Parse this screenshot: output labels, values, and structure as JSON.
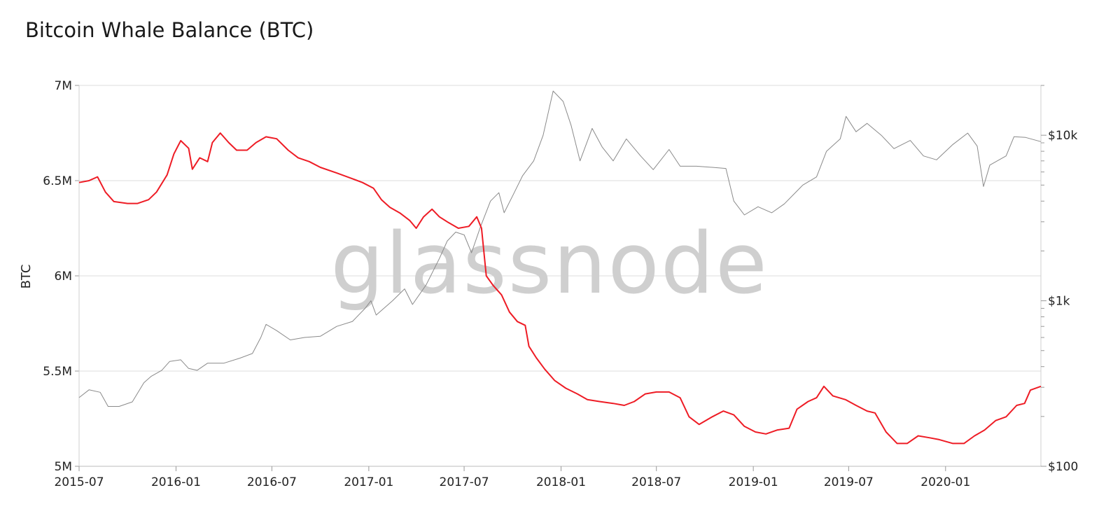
{
  "chart_data": {
    "type": "line",
    "title": "Bitcoin Whale Balance (BTC)",
    "ylabel": "BTC",
    "ylabel_right": "",
    "watermark": "glassnode",
    "ylim": [
      5000000,
      7000000
    ],
    "ylim_right": [
      100,
      20000
    ],
    "right_scale": "log",
    "yticks": [
      {
        "value": 7000000,
        "label": "7M"
      },
      {
        "value": 6500000,
        "label": "6.5M"
      },
      {
        "value": 6000000,
        "label": "6M"
      },
      {
        "value": 5500000,
        "label": "5.5M"
      },
      {
        "value": 5000000,
        "label": "5M"
      }
    ],
    "yticks_right": [
      {
        "value": 10000,
        "label": "$10k"
      },
      {
        "value": 1000,
        "label": "$1k"
      },
      {
        "value": 100,
        "label": "$100"
      }
    ],
    "xlim": [
      "2015-07-01",
      "2020-06-30"
    ],
    "xticks": [
      "2015-07",
      "2016-01",
      "2016-07",
      "2017-01",
      "2017-07",
      "2018-01",
      "2018-07",
      "2019-01",
      "2019-07",
      "2020-01"
    ],
    "grid": true,
    "series": [
      {
        "name": "",
        "axis": "left",
        "color": "#ee1c25",
        "points": [
          [
            "2015-07-01",
            6490000
          ],
          [
            "2015-07-20",
            6500000
          ],
          [
            "2015-08-05",
            6520000
          ],
          [
            "2015-08-20",
            6440000
          ],
          [
            "2015-09-05",
            6390000
          ],
          [
            "2015-10-01",
            6380000
          ],
          [
            "2015-10-20",
            6380000
          ],
          [
            "2015-11-10",
            6400000
          ],
          [
            "2015-11-25",
            6440000
          ],
          [
            "2015-12-15",
            6530000
          ],
          [
            "2015-12-28",
            6640000
          ],
          [
            "2016-01-10",
            6710000
          ],
          [
            "2016-01-25",
            6670000
          ],
          [
            "2016-02-01",
            6560000
          ],
          [
            "2016-02-15",
            6620000
          ],
          [
            "2016-03-01",
            6600000
          ],
          [
            "2016-03-10",
            6700000
          ],
          [
            "2016-03-25",
            6750000
          ],
          [
            "2016-04-10",
            6700000
          ],
          [
            "2016-04-25",
            6660000
          ],
          [
            "2016-05-15",
            6660000
          ],
          [
            "2016-06-01",
            6700000
          ],
          [
            "2016-06-20",
            6730000
          ],
          [
            "2016-07-10",
            6720000
          ],
          [
            "2016-08-01",
            6660000
          ],
          [
            "2016-08-20",
            6620000
          ],
          [
            "2016-09-10",
            6600000
          ],
          [
            "2016-10-01",
            6570000
          ],
          [
            "2016-11-01",
            6540000
          ],
          [
            "2016-12-01",
            6510000
          ],
          [
            "2016-12-20",
            6490000
          ],
          [
            "2017-01-10",
            6460000
          ],
          [
            "2017-01-25",
            6400000
          ],
          [
            "2017-02-10",
            6360000
          ],
          [
            "2017-03-01",
            6330000
          ],
          [
            "2017-03-20",
            6290000
          ],
          [
            "2017-04-01",
            6250000
          ],
          [
            "2017-04-15",
            6310000
          ],
          [
            "2017-05-01",
            6350000
          ],
          [
            "2017-05-15",
            6310000
          ],
          [
            "2017-06-01",
            6280000
          ],
          [
            "2017-06-20",
            6250000
          ],
          [
            "2017-07-10",
            6260000
          ],
          [
            "2017-07-25",
            6310000
          ],
          [
            "2017-08-03",
            6250000
          ],
          [
            "2017-08-12",
            6000000
          ],
          [
            "2017-08-25",
            5950000
          ],
          [
            "2017-09-10",
            5900000
          ],
          [
            "2017-09-25",
            5810000
          ],
          [
            "2017-10-10",
            5760000
          ],
          [
            "2017-10-25",
            5740000
          ],
          [
            "2017-11-01",
            5630000
          ],
          [
            "2017-11-15",
            5570000
          ],
          [
            "2017-12-01",
            5510000
          ],
          [
            "2017-12-20",
            5450000
          ],
          [
            "2018-01-10",
            5410000
          ],
          [
            "2018-02-01",
            5380000
          ],
          [
            "2018-02-20",
            5350000
          ],
          [
            "2018-03-15",
            5340000
          ],
          [
            "2018-04-10",
            5330000
          ],
          [
            "2018-05-01",
            5320000
          ],
          [
            "2018-05-20",
            5340000
          ],
          [
            "2018-06-10",
            5380000
          ],
          [
            "2018-07-01",
            5390000
          ],
          [
            "2018-07-25",
            5390000
          ],
          [
            "2018-08-15",
            5360000
          ],
          [
            "2018-09-01",
            5260000
          ],
          [
            "2018-09-20",
            5220000
          ],
          [
            "2018-10-15",
            5260000
          ],
          [
            "2018-11-05",
            5290000
          ],
          [
            "2018-11-25",
            5270000
          ],
          [
            "2018-12-15",
            5210000
          ],
          [
            "2019-01-05",
            5180000
          ],
          [
            "2019-01-25",
            5170000
          ],
          [
            "2019-02-15",
            5190000
          ],
          [
            "2019-03-10",
            5200000
          ],
          [
            "2019-03-25",
            5300000
          ],
          [
            "2019-04-15",
            5340000
          ],
          [
            "2019-05-01",
            5360000
          ],
          [
            "2019-05-15",
            5420000
          ],
          [
            "2019-06-01",
            5370000
          ],
          [
            "2019-06-25",
            5350000
          ],
          [
            "2019-07-15",
            5320000
          ],
          [
            "2019-08-05",
            5290000
          ],
          [
            "2019-08-20",
            5280000
          ],
          [
            "2019-09-10",
            5180000
          ],
          [
            "2019-10-01",
            5120000
          ],
          [
            "2019-10-20",
            5120000
          ],
          [
            "2019-11-10",
            5160000
          ],
          [
            "2019-12-01",
            5150000
          ],
          [
            "2019-12-20",
            5140000
          ],
          [
            "2020-01-15",
            5120000
          ],
          [
            "2020-02-05",
            5120000
          ],
          [
            "2020-02-25",
            5160000
          ],
          [
            "2020-03-15",
            5190000
          ],
          [
            "2020-04-05",
            5240000
          ],
          [
            "2020-04-25",
            5260000
          ],
          [
            "2020-05-15",
            5320000
          ],
          [
            "2020-05-30",
            5330000
          ],
          [
            "2020-06-10",
            5400000
          ],
          [
            "2020-06-30",
            5420000
          ]
        ]
      },
      {
        "name": "",
        "axis": "right",
        "color": "#8a8a8a",
        "points": [
          [
            "2015-07-01",
            260
          ],
          [
            "2015-07-20",
            290
          ],
          [
            "2015-08-10",
            280
          ],
          [
            "2015-08-25",
            230
          ],
          [
            "2015-09-15",
            230
          ],
          [
            "2015-10-10",
            245
          ],
          [
            "2015-11-01",
            320
          ],
          [
            "2015-11-15",
            350
          ],
          [
            "2015-12-05",
            380
          ],
          [
            "2015-12-20",
            430
          ],
          [
            "2016-01-10",
            440
          ],
          [
            "2016-01-25",
            390
          ],
          [
            "2016-02-10",
            380
          ],
          [
            "2016-03-01",
            420
          ],
          [
            "2016-04-01",
            420
          ],
          [
            "2016-05-01",
            450
          ],
          [
            "2016-05-25",
            480
          ],
          [
            "2016-06-10",
            600
          ],
          [
            "2016-06-20",
            720
          ],
          [
            "2016-07-10",
            660
          ],
          [
            "2016-08-05",
            580
          ],
          [
            "2016-09-01",
            600
          ],
          [
            "2016-10-01",
            610
          ],
          [
            "2016-11-01",
            700
          ],
          [
            "2016-12-01",
            750
          ],
          [
            "2016-12-25",
            900
          ],
          [
            "2017-01-05",
            1000
          ],
          [
            "2017-01-15",
            820
          ],
          [
            "2017-02-15",
            1000
          ],
          [
            "2017-03-10",
            1180
          ],
          [
            "2017-03-25",
            950
          ],
          [
            "2017-04-20",
            1250
          ],
          [
            "2017-05-15",
            1800
          ],
          [
            "2017-05-30",
            2300
          ],
          [
            "2017-06-15",
            2600
          ],
          [
            "2017-07-01",
            2500
          ],
          [
            "2017-07-15",
            1950
          ],
          [
            "2017-08-01",
            2800
          ],
          [
            "2017-08-20",
            4000
          ],
          [
            "2017-09-05",
            4500
          ],
          [
            "2017-09-15",
            3400
          ],
          [
            "2017-10-01",
            4300
          ],
          [
            "2017-10-20",
            5700
          ],
          [
            "2017-11-10",
            7000
          ],
          [
            "2017-11-28",
            10000
          ],
          [
            "2017-12-17",
            18500
          ],
          [
            "2018-01-05",
            16000
          ],
          [
            "2018-01-20",
            11500
          ],
          [
            "2018-02-06",
            7000
          ],
          [
            "2018-03-01",
            11000
          ],
          [
            "2018-03-20",
            8500
          ],
          [
            "2018-04-10",
            7000
          ],
          [
            "2018-05-05",
            9500
          ],
          [
            "2018-06-01",
            7500
          ],
          [
            "2018-06-25",
            6200
          ],
          [
            "2018-07-25",
            8200
          ],
          [
            "2018-08-15",
            6500
          ],
          [
            "2018-09-15",
            6500
          ],
          [
            "2018-10-15",
            6400
          ],
          [
            "2018-11-10",
            6300
          ],
          [
            "2018-11-25",
            4000
          ],
          [
            "2018-12-15",
            3300
          ],
          [
            "2019-01-10",
            3700
          ],
          [
            "2019-02-05",
            3400
          ],
          [
            "2019-03-01",
            3850
          ],
          [
            "2019-04-05",
            5000
          ],
          [
            "2019-05-01",
            5600
          ],
          [
            "2019-05-20",
            8000
          ],
          [
            "2019-06-15",
            9500
          ],
          [
            "2019-06-26",
            13000
          ],
          [
            "2019-07-15",
            10500
          ],
          [
            "2019-08-05",
            11800
          ],
          [
            "2019-09-01",
            10000
          ],
          [
            "2019-09-25",
            8300
          ],
          [
            "2019-10-26",
            9300
          ],
          [
            "2019-11-20",
            7500
          ],
          [
            "2019-12-15",
            7100
          ],
          [
            "2020-01-15",
            8800
          ],
          [
            "2020-02-12",
            10300
          ],
          [
            "2020-03-01",
            8600
          ],
          [
            "2020-03-13",
            4900
          ],
          [
            "2020-03-25",
            6600
          ],
          [
            "2020-04-25",
            7500
          ],
          [
            "2020-05-10",
            9800
          ],
          [
            "2020-06-01",
            9700
          ],
          [
            "2020-06-30",
            9150
          ]
        ]
      }
    ]
  }
}
